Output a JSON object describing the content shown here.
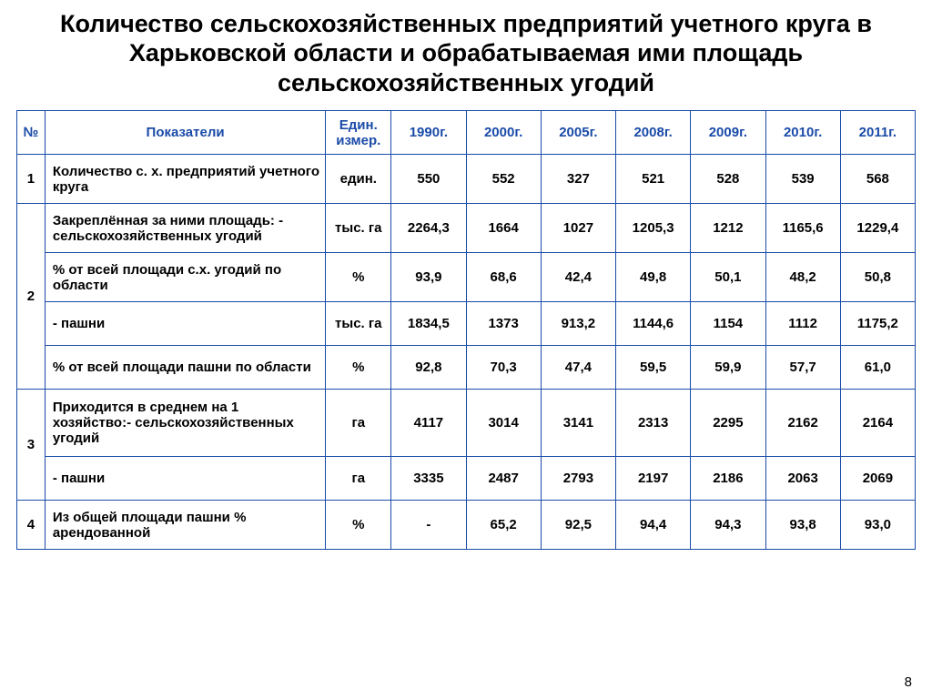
{
  "title": "Количество сельскохозяйственных предприятий учетного круга в Харьковской области и обрабатываемая\nими площадь сельскохозяйственных угодий",
  "page_number": "8",
  "colors": {
    "border": "#1a4ba8",
    "header_text": "#1a4ba8",
    "body_text": "#000000",
    "background": "#ffffff"
  },
  "table": {
    "columns": [
      "№",
      "Показатели",
      "Един. измер.",
      "1990г.",
      "2000г.",
      "2005г.",
      "2008г.",
      "2009г.",
      "2010г.",
      "2011г."
    ],
    "groups": [
      {
        "num": "1",
        "rows": [
          {
            "indicator": "Количество с. х. предприятий учетного круга",
            "unit": "един.",
            "values": [
              "550",
              "552",
              "327",
              "521",
              "528",
              "539",
              "568"
            ]
          }
        ]
      },
      {
        "num": "2",
        "rows": [
          {
            "indicator": "Закреплённая за ними площадь: - сельскохозяйственных угодий",
            "unit": "тыс. га",
            "values": [
              "2264,3",
              "1664",
              "1027",
              "1205,3",
              "1212",
              "1165,6",
              "1229,4"
            ]
          },
          {
            "indicator": "% от всей площади с.х. угодий по области",
            "unit": "%",
            "values": [
              "93,9",
              "68,6",
              "42,4",
              "49,8",
              "50,1",
              "48,2",
              "50,8"
            ]
          },
          {
            "indicator": "- пашни",
            "unit": "тыс. га",
            "values": [
              "1834,5",
              "1373",
              "913,2",
              "1144,6",
              "1154",
              "1112",
              "1175,2"
            ]
          },
          {
            "indicator": "% от всей площади пашни по области",
            "unit": "%",
            "values": [
              "92,8",
              "70,3",
              "47,4",
              "59,5",
              "59,9",
              "57,7",
              "61,0"
            ]
          }
        ]
      },
      {
        "num": "3",
        "rows": [
          {
            "indicator": "Приходится в среднем на 1 хозяйство:- сельскохозяйственных угодий",
            "unit": "га",
            "values": [
              "4117",
              "3014",
              "3141",
              "2313",
              "2295",
              "2162",
              "2164"
            ]
          },
          {
            "indicator": "- пашни",
            "unit": "га",
            "values": [
              "3335",
              "2487",
              "2793",
              "2197",
              "2186",
              "2063",
              "2069"
            ]
          }
        ]
      },
      {
        "num": "4",
        "rows": [
          {
            "indicator": "Из общей площади пашни % арендованной",
            "unit": "%",
            "values": [
              "-",
              "65,2",
              "92,5",
              "94,4",
              "94,3",
              "93,8",
              "93,0"
            ]
          }
        ]
      }
    ]
  }
}
